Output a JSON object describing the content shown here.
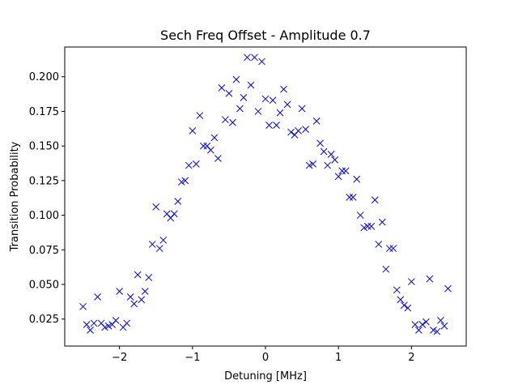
{
  "chart_data": {
    "type": "scatter",
    "title": "Sech Freq Offset - Amplitude 0.7",
    "xlabel": "Detuning [MHz]",
    "ylabel": "Transition Probability",
    "xlim": [
      -2.75,
      2.75
    ],
    "ylim": [
      0.0055,
      0.2215
    ],
    "xticks": [
      -2,
      -1,
      0,
      1,
      2
    ],
    "xtick_labels": [
      "−2",
      "−1",
      "0",
      "1",
      "2"
    ],
    "yticks": [
      0.025,
      0.05,
      0.075,
      0.1,
      0.125,
      0.15,
      0.175,
      0.2
    ],
    "ytick_labels": [
      "0.025",
      "0.050",
      "0.075",
      "0.100",
      "0.125",
      "0.150",
      "0.175",
      "0.200"
    ],
    "grid": false,
    "marker": "x",
    "color": "#0000ff",
    "x": [
      -2.5,
      -2.45,
      -2.4,
      -2.35,
      -2.3,
      -2.25,
      -2.2,
      -2.15,
      -2.1,
      -2.05,
      -2.0,
      -1.95,
      -1.9,
      -1.85,
      -1.8,
      -1.75,
      -1.7,
      -1.65,
      -1.6,
      -1.55,
      -1.5,
      -1.45,
      -1.4,
      -1.35,
      -1.3,
      -1.25,
      -1.2,
      -1.15,
      -1.1,
      -1.05,
      -1.0,
      -0.95,
      -0.9,
      -0.85,
      -0.8,
      -0.75,
      -0.7,
      -0.65,
      -0.6,
      -0.55,
      -0.5,
      -0.45,
      -0.4,
      -0.35,
      -0.3,
      -0.25,
      -0.2,
      -0.15,
      -0.1,
      -0.05,
      0.0,
      0.05,
      0.1,
      0.15,
      0.2,
      0.25,
      0.3,
      0.35,
      0.4,
      0.45,
      0.5,
      0.55,
      0.6,
      0.65,
      0.7,
      0.75,
      0.8,
      0.85,
      0.9,
      0.95,
      1.0,
      1.05,
      1.1,
      1.15,
      1.2,
      1.25,
      1.3,
      1.35,
      1.4,
      1.45,
      1.5,
      1.55,
      1.6,
      1.65,
      1.7,
      1.75,
      1.8,
      1.85,
      1.9,
      1.95,
      2.0,
      2.05,
      2.1,
      2.15,
      2.2,
      2.25,
      2.3,
      2.35,
      2.4,
      2.45,
      2.5
    ],
    "y": [
      0.034,
      0.021,
      0.017,
      0.022,
      0.041,
      0.022,
      0.019,
      0.02,
      0.021,
      0.024,
      0.045,
      0.019,
      0.022,
      0.041,
      0.036,
      0.057,
      0.039,
      0.045,
      0.055,
      0.079,
      0.106,
      0.076,
      0.082,
      0.101,
      0.098,
      0.101,
      0.11,
      0.124,
      0.125,
      0.136,
      0.161,
      0.137,
      0.172,
      0.15,
      0.15,
      0.147,
      0.156,
      0.141,
      0.192,
      0.169,
      0.188,
      0.167,
      0.198,
      0.177,
      0.185,
      0.214,
      0.194,
      0.214,
      0.175,
      0.211,
      0.184,
      0.165,
      0.183,
      0.165,
      0.174,
      0.191,
      0.18,
      0.16,
      0.158,
      0.161,
      0.177,
      0.162,
      0.136,
      0.137,
      0.168,
      0.152,
      0.146,
      0.136,
      0.144,
      0.14,
      0.128,
      0.132,
      0.132,
      0.113,
      0.113,
      0.126,
      0.1,
      0.091,
      0.092,
      0.092,
      0.111,
      0.079,
      0.095,
      0.061,
      0.076,
      0.076,
      0.046,
      0.039,
      0.035,
      0.033,
      0.052,
      0.021,
      0.017,
      0.021,
      0.023,
      0.054,
      0.017,
      0.016,
      0.024,
      0.02,
      0.047
    ]
  }
}
